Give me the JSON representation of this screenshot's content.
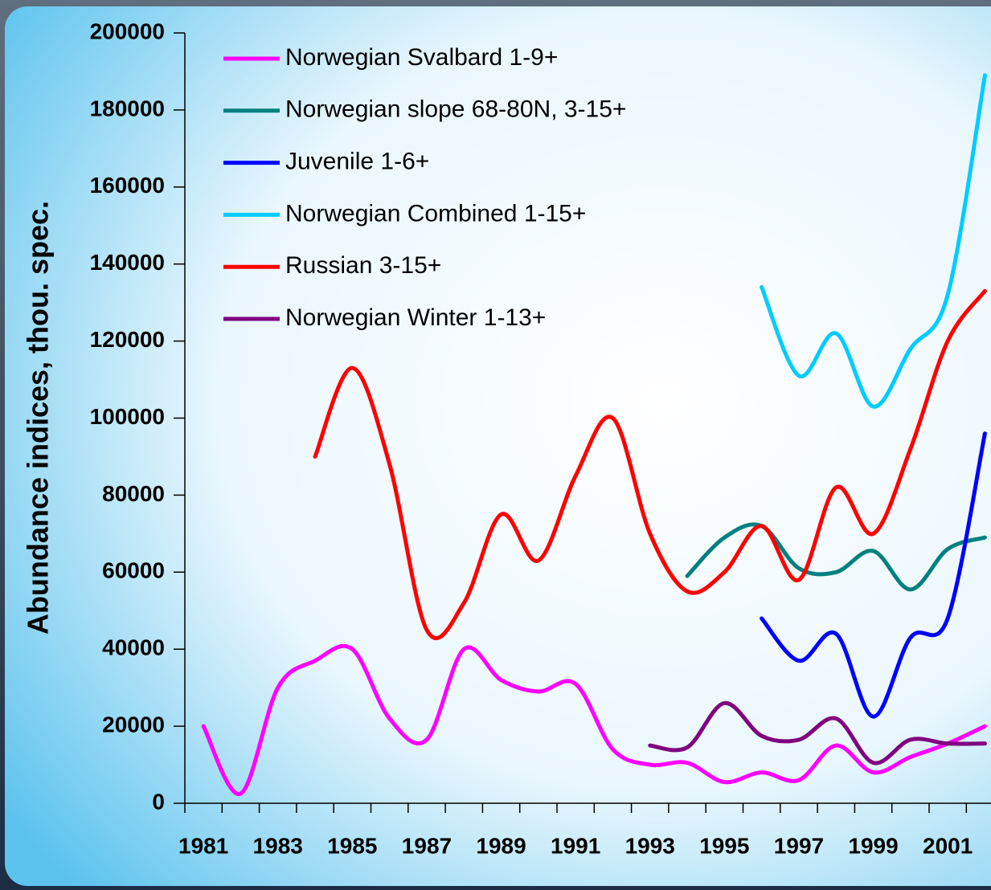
{
  "chart_data": {
    "type": "line",
    "y_label": "Abundance indices, thou. spec.",
    "categories": [
      "1981",
      null,
      "1983",
      null,
      "1985",
      null,
      "1987",
      null,
      "1989",
      null,
      "1991",
      null,
      "1993",
      null,
      "1995",
      null,
      "1997",
      null,
      "1999",
      null,
      "2001",
      null
    ],
    "ylim": [
      0,
      200000
    ],
    "yticks": [
      0,
      20000,
      40000,
      60000,
      80000,
      100000,
      120000,
      140000,
      160000,
      180000,
      200000
    ],
    "legend": "upper left",
    "smooth": true,
    "series": [
      {
        "name": "Norwegian Svalbard 1-9+",
        "color": "#ff00ff",
        "values": [
          20000,
          2500,
          30000,
          37000,
          40000,
          22000,
          16500,
          40000,
          32000,
          29000,
          31000,
          14000,
          10000,
          10500,
          5500,
          8000,
          6000,
          15000,
          8000,
          12000,
          15500,
          20000
        ]
      },
      {
        "name": "Norwegian slope 68-80N, 3-15+",
        "color": "#008080",
        "values": [
          null,
          null,
          null,
          null,
          null,
          null,
          null,
          null,
          null,
          null,
          null,
          null,
          null,
          59000,
          69000,
          72000,
          61000,
          60000,
          65500,
          55500,
          66000,
          69000
        ]
      },
      {
        "name": "Juvenile 1-6+",
        "color": "#0000ff",
        "values": [
          null,
          null,
          null,
          null,
          null,
          null,
          null,
          null,
          null,
          null,
          null,
          null,
          null,
          null,
          null,
          48000,
          37000,
          44000,
          22500,
          43000,
          48000,
          96000
        ]
      },
      {
        "name": "Norwegian Combined 1-15+",
        "color": "#00ccff",
        "values": [
          null,
          null,
          null,
          null,
          null,
          null,
          null,
          null,
          null,
          null,
          null,
          null,
          null,
          null,
          null,
          134000,
          111000,
          122000,
          103000,
          118000,
          132000,
          189000
        ]
      },
      {
        "name": "Russian 3-15+",
        "color": "#ff0000",
        "values": [
          null,
          null,
          null,
          90000,
          113000,
          88000,
          45000,
          52000,
          75000,
          63000,
          85000,
          100000,
          70000,
          55000,
          60000,
          72000,
          58000,
          82000,
          70000,
          92000,
          120000,
          133000
        ]
      },
      {
        "name": "Norwegian Winter 1-13+",
        "color": "#800080",
        "values": [
          null,
          null,
          null,
          null,
          null,
          null,
          null,
          null,
          null,
          null,
          null,
          null,
          15000,
          14500,
          26000,
          17500,
          16500,
          22000,
          10500,
          16500,
          15500,
          15500
        ]
      }
    ]
  }
}
